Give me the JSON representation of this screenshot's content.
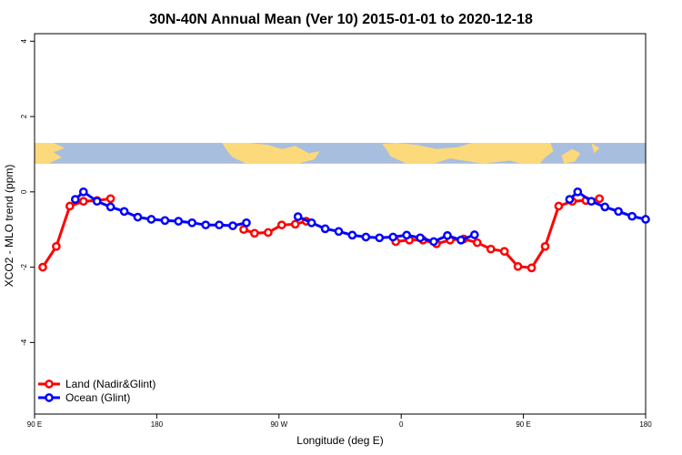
{
  "chart_data": {
    "type": "line",
    "title": "30N-40N Annual Mean (Ver 10)   2015-01-01 to 2020-12-18",
    "xlabel": "Longitude (deg E)",
    "ylabel": "XCO2 - MLO trend (ppm)",
    "xlim": [
      90,
      540
    ],
    "ylim": [
      -5.9,
      4.2
    ],
    "x_ticks": [
      {
        "value": 90,
        "label": "90 E"
      },
      {
        "value": 180,
        "label": "180"
      },
      {
        "value": 270,
        "label": "90 W"
      },
      {
        "value": 360,
        "label": "0"
      },
      {
        "value": 450,
        "label": "90 E"
      },
      {
        "value": 540,
        "label": "180"
      }
    ],
    "y_ticks": [
      {
        "value": 4,
        "label": "4"
      },
      {
        "value": 2,
        "label": "2"
      },
      {
        "value": 0,
        "label": "0"
      },
      {
        "value": -2,
        "label": "-2"
      },
      {
        "value": -4,
        "label": "-4"
      }
    ],
    "map_band": {
      "ymin": 0.75,
      "ymax": 1.3,
      "ocean_color": "#a8bede",
      "land_color": "#fcd97a"
    },
    "legend_position": "bottom-left",
    "series": [
      {
        "name": "Land (Nadir&Glint)",
        "color": "#ff0000",
        "points": [
          [
            96,
            -2.0
          ],
          [
            106,
            -1.45
          ],
          [
            116,
            -0.38
          ],
          [
            126,
            -0.25
          ],
          [
            136,
            -0.23
          ],
          [
            146,
            -0.18
          ],
          [
            244,
            -1.0
          ],
          [
            252,
            -1.1
          ],
          [
            262,
            -1.08
          ],
          [
            272,
            -0.88
          ],
          [
            282,
            -0.86
          ],
          [
            290,
            -0.78
          ],
          [
            356,
            -1.32
          ],
          [
            366,
            -1.28
          ],
          [
            376,
            -1.28
          ],
          [
            386,
            -1.38
          ],
          [
            396,
            -1.28
          ],
          [
            406,
            -1.25
          ],
          [
            416,
            -1.35
          ],
          [
            426,
            -1.52
          ],
          [
            436,
            -1.58
          ],
          [
            446,
            -1.98
          ],
          [
            456,
            -2.02
          ],
          [
            466,
            -1.45
          ],
          [
            476,
            -0.38
          ],
          [
            486,
            -0.25
          ],
          [
            496,
            -0.23
          ],
          [
            506,
            -0.18
          ]
        ]
      },
      {
        "name": "Ocean (Glint)",
        "color": "#0000ff",
        "points": [
          [
            120,
            -0.2
          ],
          [
            126,
            0.0
          ],
          [
            136,
            -0.25
          ],
          [
            146,
            -0.4
          ],
          [
            156,
            -0.52
          ],
          [
            166,
            -0.67
          ],
          [
            176,
            -0.73
          ],
          [
            186,
            -0.76
          ],
          [
            196,
            -0.78
          ],
          [
            206,
            -0.82
          ],
          [
            216,
            -0.88
          ],
          [
            226,
            -0.88
          ],
          [
            236,
            -0.9
          ],
          [
            246,
            -0.82
          ],
          [
            284,
            -0.66
          ],
          [
            294,
            -0.82
          ],
          [
            304,
            -0.98
          ],
          [
            314,
            -1.05
          ],
          [
            324,
            -1.15
          ],
          [
            334,
            -1.2
          ],
          [
            344,
            -1.22
          ],
          [
            354,
            -1.2
          ],
          [
            364,
            -1.15
          ],
          [
            374,
            -1.22
          ],
          [
            384,
            -1.32
          ],
          [
            394,
            -1.16
          ],
          [
            404,
            -1.28
          ],
          [
            414,
            -1.14
          ],
          [
            484,
            -0.2
          ],
          [
            490,
            0.0
          ],
          [
            500,
            -0.25
          ],
          [
            510,
            -0.4
          ],
          [
            520,
            -0.52
          ],
          [
            530,
            -0.65
          ],
          [
            540,
            -0.73
          ]
        ]
      }
    ]
  }
}
